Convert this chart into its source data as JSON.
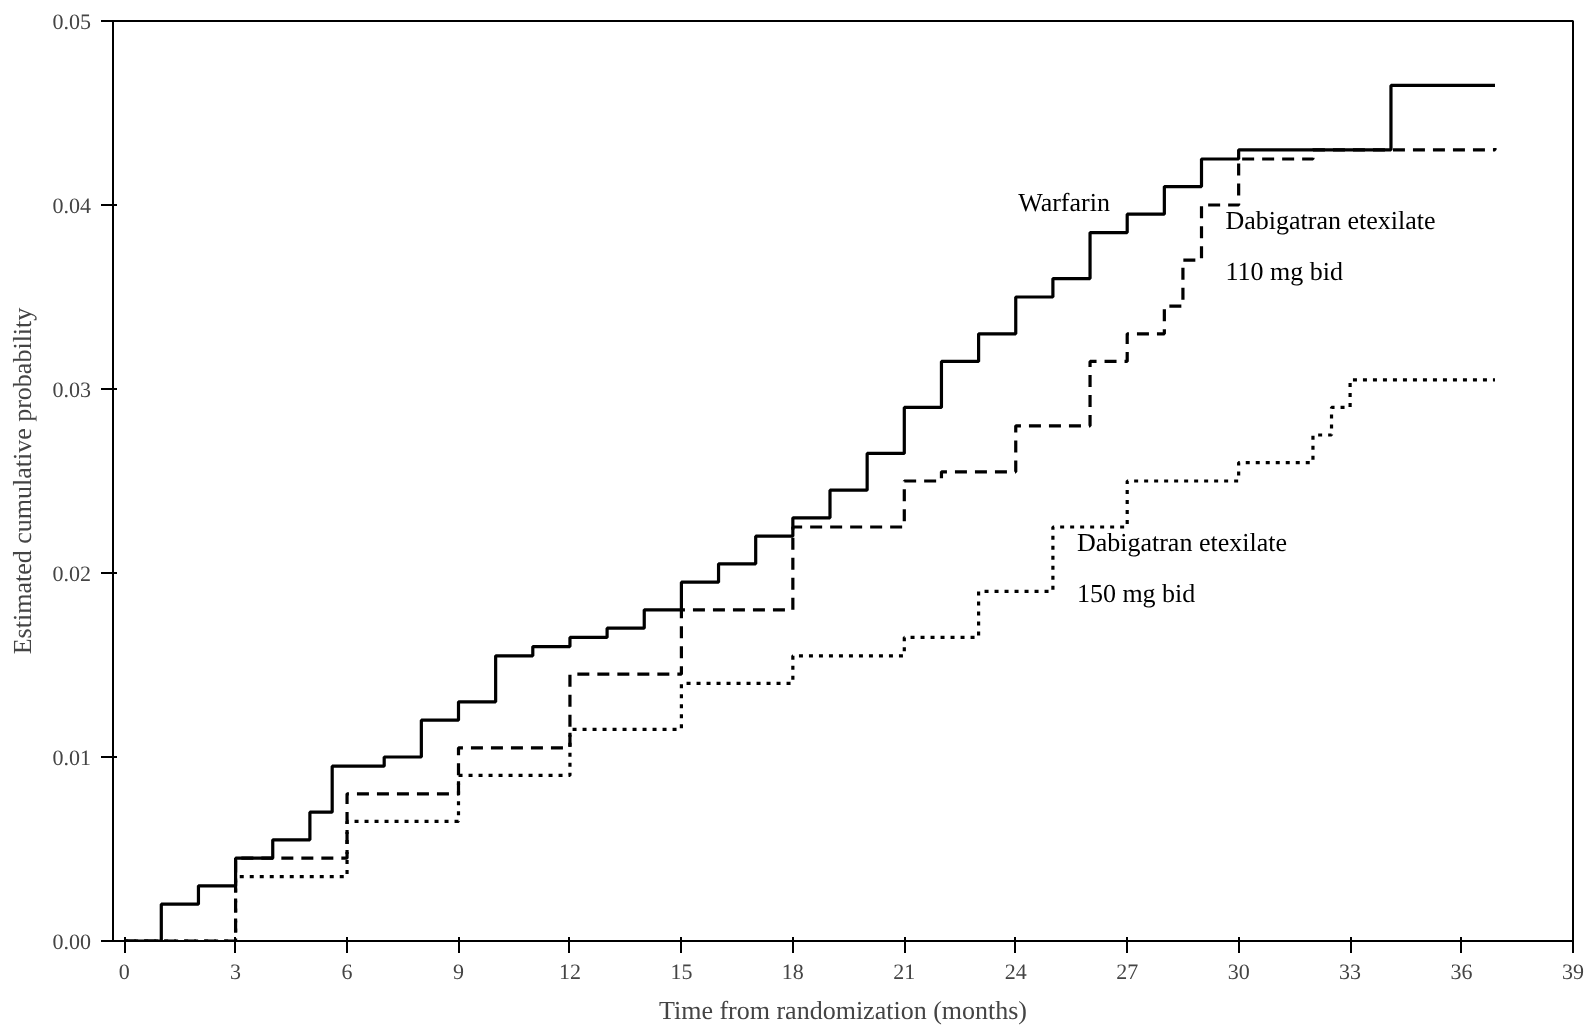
{
  "chart_data": {
    "type": "step",
    "xlabel": "Time from randomization (months)",
    "ylabel": "Estimated cumulative probability",
    "xlim": [
      -0.3,
      39
    ],
    "ylim": [
      0,
      0.05
    ],
    "xticks": [
      0,
      3,
      6,
      9,
      12,
      15,
      18,
      21,
      24,
      27,
      30,
      33,
      36,
      39
    ],
    "yticks": [
      {
        "value": 0,
        "label": "0.00"
      },
      {
        "value": 0.01,
        "label": "0.01"
      },
      {
        "value": 0.02,
        "label": "0.02"
      },
      {
        "value": 0.03,
        "label": "0.03"
      },
      {
        "value": 0.04,
        "label": "0.04"
      },
      {
        "value": 0.05,
        "label": "0.05"
      }
    ],
    "grid": false,
    "series": [
      {
        "name": "Warfarin",
        "color": "#000000",
        "line_style": "solid",
        "x": [
          0,
          1,
          2,
          3,
          4,
          5,
          5.6,
          7,
          8,
          9,
          10,
          11,
          12,
          13,
          14,
          15,
          16,
          17,
          18,
          19,
          20,
          21,
          22,
          23,
          24,
          25,
          26,
          27,
          28,
          29,
          30,
          34.1,
          36.9
        ],
        "values": [
          0,
          0.002,
          0.003,
          0.0045,
          0.0055,
          0.007,
          0.0095,
          0.01,
          0.012,
          0.013,
          0.0155,
          0.016,
          0.0165,
          0.017,
          0.018,
          0.0195,
          0.0205,
          0.022,
          0.023,
          0.0245,
          0.0265,
          0.029,
          0.0315,
          0.033,
          0.035,
          0.036,
          0.0385,
          0.0395,
          0.041,
          0.0425,
          0.043,
          0.0465,
          0.0465
        ]
      },
      {
        "name": "Dabigatran etexilate\n110 mg bid",
        "color": "#000000",
        "line_style": "dashed",
        "x": [
          0,
          3,
          6,
          9,
          12,
          15,
          18,
          21,
          22,
          24,
          26,
          27,
          28,
          28.5,
          29,
          30,
          32,
          36.9
        ],
        "values": [
          0,
          0.0045,
          0.008,
          0.0105,
          0.0145,
          0.018,
          0.0225,
          0.025,
          0.0255,
          0.028,
          0.0315,
          0.033,
          0.0345,
          0.037,
          0.04,
          0.0425,
          0.043,
          0.0431
        ]
      },
      {
        "name": "Dabigatran etexilate\n150 mg bid",
        "color": "#000000",
        "line_style": "dotted",
        "x": [
          0,
          3,
          6,
          9,
          12,
          15,
          18,
          21,
          23,
          25,
          27,
          30,
          31,
          32,
          32.5,
          33,
          36.9
        ],
        "values": [
          0,
          0.0035,
          0.0065,
          0.009,
          0.0115,
          0.014,
          0.0155,
          0.0165,
          0.019,
          0.0225,
          0.025,
          0.026,
          0.026,
          0.0275,
          0.029,
          0.0305,
          0.0305
        ]
      }
    ]
  }
}
